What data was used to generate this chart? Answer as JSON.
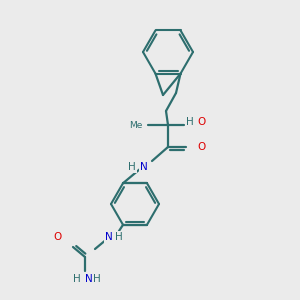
{
  "background_color": "#ebebeb",
  "bond_color": "#2d6e6e",
  "atom_colors": {
    "O": "#dd0000",
    "N": "#0000cc",
    "C": "#2d6e6e",
    "H": "#2d6e6e"
  }
}
